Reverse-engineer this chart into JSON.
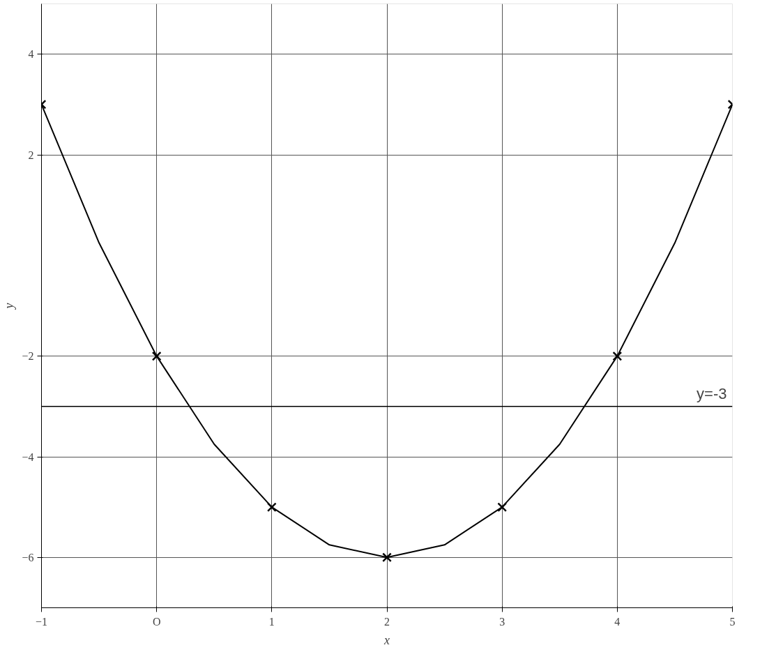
{
  "chart_data": {
    "type": "line",
    "xlabel": "x",
    "ylabel": "y",
    "xlim": [
      -1,
      5
    ],
    "ylim": [
      -7,
      5
    ],
    "xticks": [
      -1,
      {
        "value": 0,
        "label": "O"
      },
      1,
      2,
      3,
      4,
      5
    ],
    "yticks": [
      -6,
      -4,
      -2,
      2,
      4
    ],
    "grid": true,
    "series": [
      {
        "color": "#000000",
        "marker": "none",
        "x": [
          -1,
          -0.5,
          0,
          0.5,
          1,
          1.5,
          2,
          2.5,
          3,
          3.5,
          4,
          4.5,
          5
        ],
        "values": [
          3,
          0.25,
          -2,
          -3.75,
          -5,
          -5.75,
          -6,
          -5.75,
          -5,
          -3.75,
          -2,
          0.25,
          3
        ]
      },
      {
        "type": "scatter",
        "color": "#000000",
        "marker": "cross",
        "x": [
          -1,
          0,
          1,
          2,
          3,
          4,
          5
        ],
        "values": [
          3,
          -2,
          -5,
          -6,
          -5,
          -2,
          3
        ]
      }
    ],
    "ref_lines": [
      {
        "axis": "y",
        "value": -3,
        "label": "y=-3",
        "color": "#000000"
      }
    ]
  }
}
